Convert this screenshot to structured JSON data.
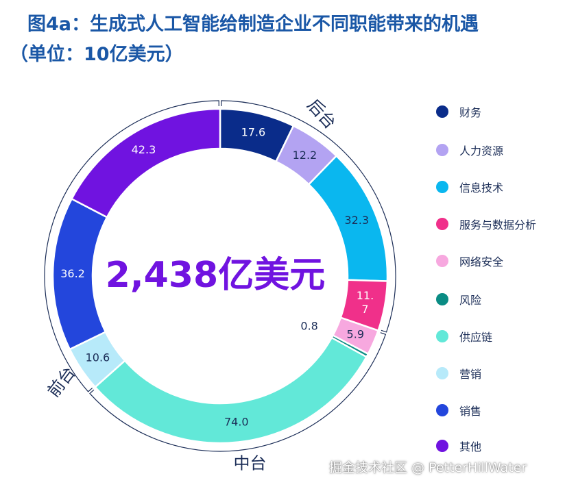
{
  "title": "图4a：生成式人工智能给制造企业不同职能带来的机遇",
  "subtitle": "（单位：10亿美元）",
  "watermark": "掘金技术社区 @ PetterHillWater",
  "chart_data": {
    "type": "pie",
    "variant": "donut",
    "center_text": "2,438亿美元",
    "categories": [
      "财务",
      "人力资源",
      "信息技术",
      "服务与数据分析",
      "网络安全",
      "风险",
      "供应链",
      "营销",
      "销售",
      "其他"
    ],
    "values": [
      17.6,
      12.2,
      32.3,
      11.7,
      5.9,
      0.8,
      74.0,
      10.6,
      36.2,
      42.3
    ],
    "value_labels": [
      "17.6",
      "12.2",
      "32.3",
      "11.\n7",
      "5.9",
      "0.8",
      "74.0",
      "10.6",
      "36.2",
      "42.3"
    ],
    "colors": [
      "#0a2c8a",
      "#b3a3f2",
      "#0ab7ef",
      "#f0308a",
      "#f7a8df",
      "#0a8c84",
      "#62e8d8",
      "#b7eafa",
      "#2346dc",
      "#7013e0"
    ],
    "label_colors": [
      "#ffffff",
      "#1b2d57",
      "#1b2d57",
      "#ffffff",
      "#1b2d57",
      "#1b2d57",
      "#1b2d57",
      "#1b2d57",
      "#ffffff",
      "#ffffff"
    ],
    "legend_placement": "right",
    "groups": [
      {
        "label": "后台",
        "members": [
          "财务",
          "人力资源",
          "信息技术",
          "服务与数据分析"
        ]
      },
      {
        "label": "中台",
        "members": [
          "网络安全",
          "风险",
          "供应链"
        ]
      },
      {
        "label": "前台",
        "members": [
          "营销",
          "销售",
          "其他"
        ]
      }
    ]
  }
}
